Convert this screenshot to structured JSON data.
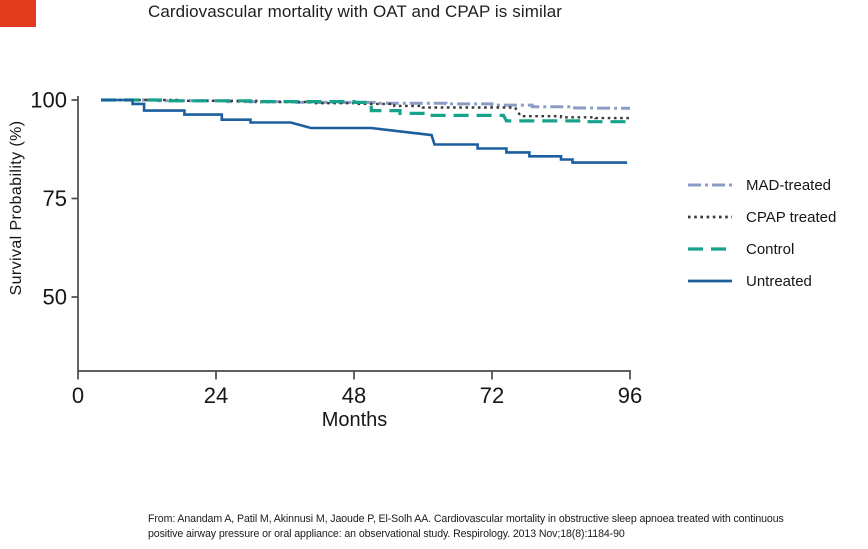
{
  "slide": {
    "title": "Cardiovascular mortality with OAT and CPAP is similar",
    "accent_color": "#e23a1c"
  },
  "chart_data": {
    "type": "line",
    "subtype": "kaplan-meier-survival-steps",
    "title": "Cardiovascular mortality with OAT and CPAP is similar",
    "xlabel": "Months",
    "ylabel": "Survival Probability (%)",
    "xlim": [
      0,
      96
    ],
    "ylim": [
      31,
      101
    ],
    "xticks": [
      0,
      24,
      48,
      72,
      96
    ],
    "yticks": [
      100,
      75,
      50
    ],
    "grid": false,
    "legend_position": "right",
    "axis_color": "#4a4a4a",
    "series": [
      {
        "name": "MAD-treated",
        "color": "#8d9cc7",
        "style": "dash-dot",
        "width": 3,
        "dash": "13 4 3 4",
        "points": [
          [
            4,
            100
          ],
          [
            14,
            100
          ],
          [
            14,
            99.8
          ],
          [
            26,
            99.8
          ],
          [
            26,
            99.6
          ],
          [
            38,
            99.6
          ],
          [
            38,
            99.4
          ],
          [
            52,
            99.4
          ],
          [
            52,
            99.2
          ],
          [
            64,
            99.2
          ],
          [
            64,
            99.0
          ],
          [
            72,
            99.0
          ],
          [
            72,
            98.7
          ],
          [
            79,
            98.7
          ],
          [
            79,
            98.3
          ],
          [
            86,
            98.3
          ],
          [
            86,
            98.0
          ],
          [
            96,
            97.9
          ]
        ]
      },
      {
        "name": "CPAP treated",
        "color": "#3a3a3a",
        "style": "dotted",
        "width": 2.4,
        "dash": "2.6 3.6",
        "points": [
          [
            4,
            100
          ],
          [
            18,
            100
          ],
          [
            18,
            99.8
          ],
          [
            31,
            99.8
          ],
          [
            31,
            99.5
          ],
          [
            41,
            99.5
          ],
          [
            41,
            99.2
          ],
          [
            48,
            99.2
          ],
          [
            48,
            99.0
          ],
          [
            55,
            99.0
          ],
          [
            55,
            98.5
          ],
          [
            60,
            98.5
          ],
          [
            60,
            98.1
          ],
          [
            76,
            98.1
          ],
          [
            77,
            95.9
          ],
          [
            84,
            95.9
          ],
          [
            84,
            95.6
          ],
          [
            90,
            95.6
          ],
          [
            90,
            95.4
          ],
          [
            96,
            95.4
          ]
        ]
      },
      {
        "name": "Control",
        "color": "#17a28c",
        "style": "dashed",
        "width": 3.2,
        "dash": "15 8",
        "points": [
          [
            4,
            100
          ],
          [
            16,
            100
          ],
          [
            16,
            99.8
          ],
          [
            30,
            99.8
          ],
          [
            30,
            99.6
          ],
          [
            48,
            99.6
          ],
          [
            48,
            99.4
          ],
          [
            51,
            99.4
          ],
          [
            51,
            97.3
          ],
          [
            56,
            97.3
          ],
          [
            56,
            96.6
          ],
          [
            60,
            96.6
          ],
          [
            60,
            96.1
          ],
          [
            74,
            96.1
          ],
          [
            74.5,
            94.7
          ],
          [
            88,
            94.7
          ],
          [
            88,
            94.5
          ],
          [
            96,
            94.5
          ]
        ]
      },
      {
        "name": "Untreated",
        "color": "#1d5e9f",
        "style": "solid",
        "width": 2.6,
        "dash": "",
        "points": [
          [
            4,
            100
          ],
          [
            9.5,
            100
          ],
          [
            9.5,
            99.0
          ],
          [
            11.5,
            99.0
          ],
          [
            11.5,
            97.3
          ],
          [
            18.5,
            97.3
          ],
          [
            18.5,
            96.3
          ],
          [
            25,
            96.3
          ],
          [
            25,
            95.0
          ],
          [
            30,
            95.0
          ],
          [
            30,
            94.3
          ],
          [
            37,
            94.3
          ],
          [
            40.5,
            92.9
          ],
          [
            51,
            92.9
          ],
          [
            61.5,
            91.1
          ],
          [
            62,
            88.7
          ],
          [
            69.5,
            88.7
          ],
          [
            69.5,
            87.7
          ],
          [
            74.5,
            87.7
          ],
          [
            74.5,
            86.7
          ],
          [
            78.5,
            86.7
          ],
          [
            78.5,
            85.7
          ],
          [
            84,
            85.7
          ],
          [
            84,
            84.9
          ],
          [
            86,
            84.9
          ],
          [
            86,
            84.1
          ],
          [
            95.5,
            84.1
          ]
        ]
      }
    ]
  },
  "citation": {
    "line1": "From: Anandam A, Patil M, Akinnusi M, Jaoude P, El-Solh AA. Cardiovascular mortality in obstructive sleep apnoea treated with continuous",
    "line2": "positive airway pressure or oral appliance: an observational study. Respirology. 2013 Nov;18(8):1184-90"
  }
}
